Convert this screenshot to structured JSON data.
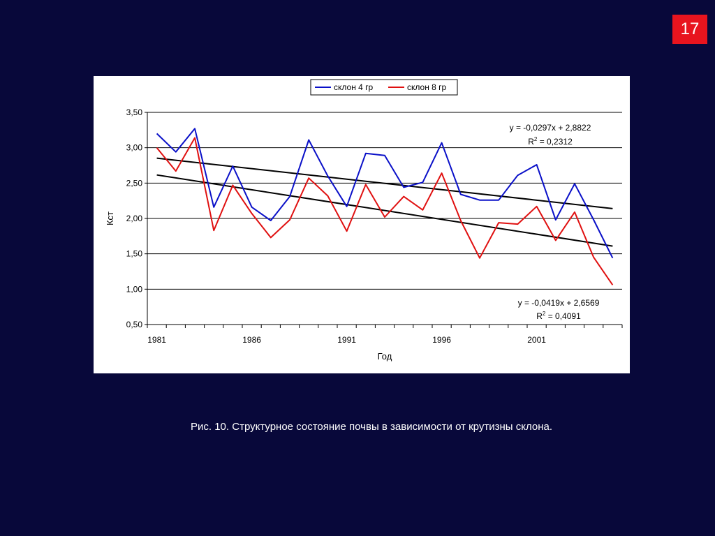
{
  "slide": {
    "number": "17",
    "caption": "Рис. 10. Структурное состояние почвы в зависимости от крутизны склона."
  },
  "chart_data": {
    "type": "line",
    "xlabel": "Год",
    "ylabel": "Кст",
    "ylim": [
      0.5,
      3.5
    ],
    "yticks": [
      "0,50",
      "1,00",
      "1,50",
      "2,00",
      "2,50",
      "3,00",
      "3,50"
    ],
    "xtick_labels": [
      "1981",
      "1986",
      "1991",
      "1996",
      "2001"
    ],
    "grid": "horizontal",
    "legend_position": "top-center",
    "x": [
      1981,
      1982,
      1983,
      1984,
      1985,
      1986,
      1987,
      1988,
      1989,
      1990,
      1991,
      1992,
      1993,
      1994,
      1995,
      1996,
      1997,
      1998,
      1999,
      2000,
      2001,
      2002,
      2003,
      2004,
      2005
    ],
    "series": [
      {
        "name": "склон 4 гр",
        "color": "#0a10c8",
        "values": [
          3.2,
          2.94,
          3.27,
          2.16,
          2.74,
          2.16,
          1.97,
          2.31,
          3.11,
          2.6,
          2.17,
          2.92,
          2.89,
          2.44,
          2.51,
          3.07,
          2.34,
          2.26,
          2.26,
          2.61,
          2.76,
          1.98,
          2.49,
          1.98,
          1.44
        ]
      },
      {
        "name": "склон 8 гр",
        "color": "#e01010",
        "values": [
          3.0,
          2.67,
          3.14,
          1.83,
          2.47,
          2.07,
          1.73,
          1.98,
          2.57,
          2.32,
          1.82,
          2.48,
          2.02,
          2.31,
          2.12,
          2.64,
          1.97,
          1.44,
          1.94,
          1.92,
          2.17,
          1.69,
          2.09,
          1.45,
          1.06
        ]
      }
    ],
    "trendlines": [
      {
        "series": "склон 4 гр",
        "slope": -0.0297,
        "intercept": 2.8822,
        "equation": "y = -0,0297x + 2,8822",
        "r2_label": "R",
        "r2_sup": "2",
        "r2_value": " = 0,2312",
        "color": "#000000"
      },
      {
        "series": "склон 8 гр",
        "slope": -0.0419,
        "intercept": 2.6569,
        "equation": "y = -0,0419x + 2,6569",
        "r2_label": "R",
        "r2_sup": "2",
        "r2_value": " = 0,4091",
        "color": "#000000"
      }
    ]
  }
}
